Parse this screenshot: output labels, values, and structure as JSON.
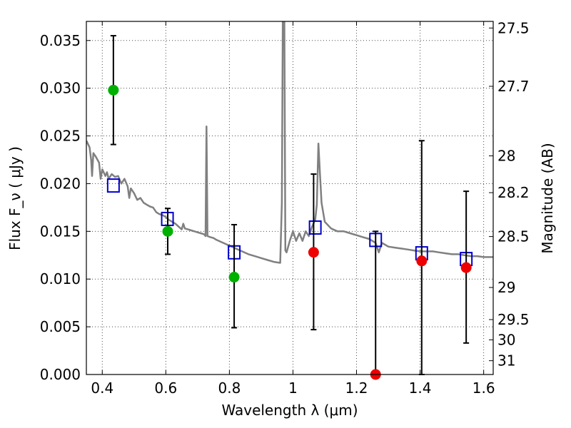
{
  "chart_data": {
    "type": "scatter",
    "title": "",
    "xlabel": "Wavelength  λ (μm)",
    "ylabel": "Flux  F_ν  ( μJy )",
    "y2label": "Magnitude (AB)",
    "xlim": [
      0.35,
      1.63
    ],
    "ylim": [
      0.0,
      0.037
    ],
    "grid": true,
    "x_ticks": [
      {
        "value": 0.4,
        "label": "0.4"
      },
      {
        "value": 0.6,
        "label": "0.6"
      },
      {
        "value": 0.8,
        "label": "0.8"
      },
      {
        "value": 1.0,
        "label": "1"
      },
      {
        "value": 1.2,
        "label": "1.2"
      },
      {
        "value": 1.4,
        "label": "1.4"
      },
      {
        "value": 1.6,
        "label": "1.6"
      }
    ],
    "y_ticks": [
      {
        "value": 0.0,
        "label": "0.000"
      },
      {
        "value": 0.005,
        "label": "0.005"
      },
      {
        "value": 0.01,
        "label": "0.010"
      },
      {
        "value": 0.015,
        "label": "0.015"
      },
      {
        "value": 0.02,
        "label": "0.020"
      },
      {
        "value": 0.025,
        "label": "0.025"
      },
      {
        "value": 0.03,
        "label": "0.030"
      },
      {
        "value": 0.035,
        "label": "0.035"
      }
    ],
    "y2_ticks": [
      {
        "mag": 27.5,
        "label": "27.5"
      },
      {
        "mag": 27.7,
        "label": "27.7"
      },
      {
        "mag": 28.0,
        "label": "28"
      },
      {
        "mag": 28.2,
        "label": "28.2"
      },
      {
        "mag": 28.5,
        "label": "28.5"
      },
      {
        "mag": 29.0,
        "label": "29"
      },
      {
        "mag": 29.5,
        "label": "29.5"
      },
      {
        "mag": 30.0,
        "label": "30"
      },
      {
        "mag": 31.0,
        "label": "31"
      }
    ],
    "series": [
      {
        "kind": "line",
        "color": "#808080",
        "points": [
          [
            0.35,
            0.0245
          ],
          [
            0.36,
            0.0238
          ],
          [
            0.365,
            0.0225
          ],
          [
            0.368,
            0.0208
          ],
          [
            0.372,
            0.0232
          ],
          [
            0.38,
            0.0228
          ],
          [
            0.39,
            0.0222
          ],
          [
            0.395,
            0.0205
          ],
          [
            0.4,
            0.0215
          ],
          [
            0.41,
            0.0208
          ],
          [
            0.415,
            0.0212
          ],
          [
            0.42,
            0.0205
          ],
          [
            0.43,
            0.021
          ],
          [
            0.44,
            0.0207
          ],
          [
            0.45,
            0.0208
          ],
          [
            0.46,
            0.02
          ],
          [
            0.47,
            0.0205
          ],
          [
            0.48,
            0.0197
          ],
          [
            0.485,
            0.0185
          ],
          [
            0.49,
            0.0195
          ],
          [
            0.5,
            0.019
          ],
          [
            0.51,
            0.0183
          ],
          [
            0.52,
            0.0185
          ],
          [
            0.53,
            0.018
          ],
          [
            0.54,
            0.0178
          ],
          [
            0.55,
            0.0176
          ],
          [
            0.56,
            0.0175
          ],
          [
            0.57,
            0.017
          ],
          [
            0.58,
            0.0168
          ],
          [
            0.59,
            0.0167
          ],
          [
            0.6,
            0.0165
          ],
          [
            0.61,
            0.0162
          ],
          [
            0.62,
            0.016
          ],
          [
            0.63,
            0.0158
          ],
          [
            0.64,
            0.0155
          ],
          [
            0.65,
            0.0152
          ],
          [
            0.655,
            0.0158
          ],
          [
            0.66,
            0.0153
          ],
          [
            0.67,
            0.0152
          ],
          [
            0.68,
            0.0151
          ],
          [
            0.69,
            0.015
          ],
          [
            0.7,
            0.0149
          ],
          [
            0.71,
            0.0148
          ],
          [
            0.72,
            0.0147
          ],
          [
            0.725,
            0.0145
          ],
          [
            0.728,
            0.026
          ],
          [
            0.731,
            0.0145
          ],
          [
            0.74,
            0.0144
          ],
          [
            0.75,
            0.0143
          ],
          [
            0.76,
            0.0141
          ],
          [
            0.78,
            0.0138
          ],
          [
            0.8,
            0.0135
          ],
          [
            0.82,
            0.0132
          ],
          [
            0.84,
            0.0129
          ],
          [
            0.86,
            0.0126
          ],
          [
            0.88,
            0.0124
          ],
          [
            0.9,
            0.0122
          ],
          [
            0.92,
            0.012
          ],
          [
            0.94,
            0.0118
          ],
          [
            0.96,
            0.0117
          ],
          [
            0.965,
            0.018
          ],
          [
            0.968,
            0.037
          ],
          [
            0.973,
            0.037
          ],
          [
            0.976,
            0.013
          ],
          [
            0.98,
            0.0128
          ],
          [
            0.99,
            0.014
          ],
          [
            1.0,
            0.015
          ],
          [
            1.01,
            0.014
          ],
          [
            1.02,
            0.0148
          ],
          [
            1.03,
            0.014
          ],
          [
            1.04,
            0.015
          ],
          [
            1.05,
            0.0145
          ],
          [
            1.06,
            0.0155
          ],
          [
            1.07,
            0.0162
          ],
          [
            1.075,
            0.0178
          ],
          [
            1.08,
            0.0242
          ],
          [
            1.085,
            0.021
          ],
          [
            1.09,
            0.018
          ],
          [
            1.1,
            0.016
          ],
          [
            1.12,
            0.0153
          ],
          [
            1.14,
            0.015
          ],
          [
            1.16,
            0.015
          ],
          [
            1.18,
            0.0148
          ],
          [
            1.2,
            0.0146
          ],
          [
            1.22,
            0.0144
          ],
          [
            1.24,
            0.0142
          ],
          [
            1.26,
            0.0138
          ],
          [
            1.27,
            0.0128
          ],
          [
            1.28,
            0.0138
          ],
          [
            1.3,
            0.0134
          ],
          [
            1.32,
            0.0133
          ],
          [
            1.34,
            0.0132
          ],
          [
            1.36,
            0.0131
          ],
          [
            1.38,
            0.013
          ],
          [
            1.4,
            0.0129
          ],
          [
            1.42,
            0.0129
          ],
          [
            1.44,
            0.0129
          ],
          [
            1.46,
            0.0128
          ],
          [
            1.48,
            0.0127
          ],
          [
            1.5,
            0.0126
          ],
          [
            1.52,
            0.0126
          ],
          [
            1.54,
            0.0125
          ],
          [
            1.56,
            0.0124
          ],
          [
            1.58,
            0.0124
          ],
          [
            1.6,
            0.0123
          ],
          [
            1.63,
            0.0123
          ]
        ]
      },
      {
        "kind": "model-squares",
        "color": "#0000cc",
        "points": [
          [
            0.435,
            0.0198
          ],
          [
            0.605,
            0.0163
          ],
          [
            0.815,
            0.0128
          ],
          [
            1.07,
            0.0154
          ],
          [
            1.26,
            0.0141
          ],
          [
            1.405,
            0.0127
          ],
          [
            1.545,
            0.0121
          ]
        ]
      },
      {
        "kind": "points-errorbars",
        "color": "#00b000",
        "points": [
          {
            "x": 0.435,
            "y": 0.0298,
            "lo": 0.0241,
            "hi": 0.0355
          },
          {
            "x": 0.606,
            "y": 0.015,
            "lo": 0.0126,
            "hi": 0.0174
          },
          {
            "x": 0.815,
            "y": 0.0102,
            "lo": 0.0049,
            "hi": 0.0157
          }
        ]
      },
      {
        "kind": "points-errorbars",
        "color": "#ee0000",
        "points": [
          {
            "x": 1.065,
            "y": 0.0128,
            "lo": 0.0047,
            "hi": 0.021
          },
          {
            "x": 1.26,
            "y": 0.0,
            "lo": 0.0,
            "hi": 0.015
          },
          {
            "x": 1.405,
            "y": 0.0119,
            "lo": 0.0,
            "hi": 0.0245
          },
          {
            "x": 1.545,
            "y": 0.0112,
            "lo": 0.0033,
            "hi": 0.0192
          }
        ]
      }
    ]
  }
}
